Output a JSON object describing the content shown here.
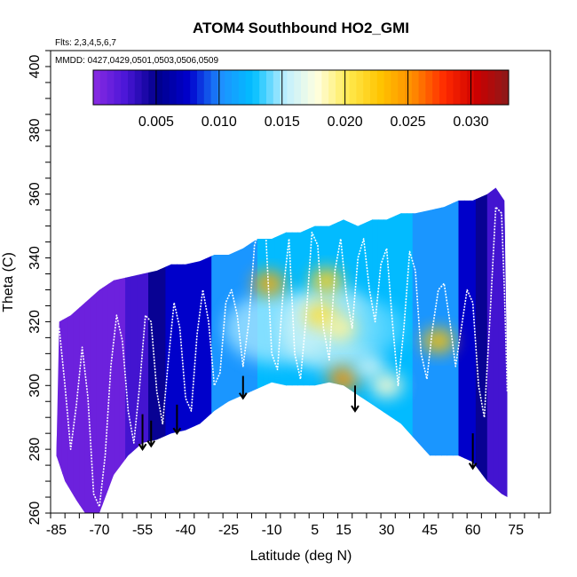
{
  "chart_data": {
    "type": "heatmap",
    "title": "ATOM4 Southbound HO2_GMI",
    "flights_note": "Flts: 2,3,4,5,6,7",
    "dates_note": "MMDD: 0427,0429,0501,0503,0506,0509",
    "xlabel": "Latitude (deg N)",
    "ylabel": "Theta (C)",
    "xlim": [
      -87,
      87
    ],
    "ylim": [
      260,
      405
    ],
    "x_ticks": [
      -85,
      -70,
      -55,
      -40,
      -25,
      -10,
      5,
      15,
      30,
      45,
      60,
      75
    ],
    "x_tick_labels": [
      "-85",
      "-70",
      "-55",
      "-40",
      "-25",
      "-10",
      "5",
      "15",
      "30",
      "45",
      "60",
      "75"
    ],
    "y_ticks": [
      260,
      280,
      300,
      320,
      340,
      360,
      380,
      400
    ],
    "y_tick_labels": [
      "260",
      "280",
      "300",
      "320",
      "340",
      "360",
      "380",
      "400"
    ],
    "colorbar": {
      "range": [
        0,
        0.033
      ],
      "ticks": [
        0.005,
        0.01,
        0.015,
        0.02,
        0.025,
        0.03
      ],
      "tick_labels": [
        "0.005",
        "0.010",
        "0.015",
        "0.020",
        "0.025",
        "0.030"
      ],
      "colors": [
        "#8a2be2",
        "#4b16d8",
        "#00008b",
        "#0000cd",
        "#1e90ff",
        "#00bfff",
        "#bfefff",
        "#ffffe0",
        "#ffe94d",
        "#ffc400",
        "#ff8c00",
        "#ff2a00",
        "#cc0000",
        "#8b1a1a"
      ]
    },
    "upper_boundary": [
      [
        -84,
        320
      ],
      [
        -80,
        322
      ],
      [
        -75,
        326
      ],
      [
        -70,
        330
      ],
      [
        -65,
        333
      ],
      [
        -60,
        334
      ],
      [
        -55,
        335
      ],
      [
        -50,
        336
      ],
      [
        -45,
        338
      ],
      [
        -40,
        338
      ],
      [
        -35,
        339
      ],
      [
        -30,
        341
      ],
      [
        -25,
        341
      ],
      [
        -20,
        343
      ],
      [
        -15,
        346
      ],
      [
        -10,
        346
      ],
      [
        -5,
        348
      ],
      [
        0,
        348
      ],
      [
        5,
        350
      ],
      [
        10,
        350
      ],
      [
        15,
        352
      ],
      [
        20,
        350
      ],
      [
        25,
        352
      ],
      [
        30,
        352
      ],
      [
        35,
        354
      ],
      [
        40,
        354
      ],
      [
        45,
        355
      ],
      [
        50,
        356
      ],
      [
        55,
        358
      ],
      [
        60,
        358
      ],
      [
        65,
        360
      ],
      [
        68,
        362
      ],
      [
        71,
        358
      ],
      [
        72,
        300
      ],
      [
        72,
        265
      ]
    ],
    "lower_boundary": [
      [
        -85,
        278
      ],
      [
        -82,
        270
      ],
      [
        -78,
        264
      ],
      [
        -75,
        260
      ],
      [
        -70,
        260
      ],
      [
        -65,
        272
      ],
      [
        -60,
        278
      ],
      [
        -55,
        282
      ],
      [
        -50,
        283
      ],
      [
        -45,
        285
      ],
      [
        -40,
        286
      ],
      [
        -35,
        288
      ],
      [
        -30,
        292
      ],
      [
        -25,
        295
      ],
      [
        -20,
        297
      ],
      [
        -15,
        299
      ],
      [
        -10,
        301
      ],
      [
        -5,
        300
      ],
      [
        0,
        300
      ],
      [
        5,
        300
      ],
      [
        10,
        301
      ],
      [
        15,
        300
      ],
      [
        20,
        297
      ],
      [
        25,
        294
      ],
      [
        30,
        291
      ],
      [
        35,
        288
      ],
      [
        40,
        283
      ],
      [
        45,
        278
      ],
      [
        50,
        278
      ],
      [
        55,
        278
      ],
      [
        60,
        276
      ],
      [
        65,
        270
      ],
      [
        70,
        266
      ],
      [
        72,
        265
      ]
    ],
    "highs": [
      {
        "lat": -11,
        "theta": 332,
        "value": 0.024
      },
      {
        "lat": 7,
        "theta": 322,
        "value": 0.021
      },
      {
        "lat": 9,
        "theta": 333,
        "value": 0.022
      },
      {
        "lat": 15,
        "theta": 302,
        "value": 0.025
      },
      {
        "lat": 14,
        "theta": 318,
        "value": 0.019
      },
      {
        "lat": 48,
        "theta": 314,
        "value": 0.023
      },
      {
        "lat": 24,
        "theta": 306,
        "value": 0.016
      },
      {
        "lat": 30,
        "theta": 300,
        "value": 0.018
      }
    ],
    "descent_arrows": [
      {
        "lat": -55,
        "theta_start": 291,
        "theta_end": 280
      },
      {
        "lat": -52,
        "theta_start": 289,
        "theta_end": 281
      },
      {
        "lat": -43,
        "theta_start": 294,
        "theta_end": 285
      },
      {
        "lat": -20,
        "theta_start": 303,
        "theta_end": 296
      },
      {
        "lat": 19,
        "theta_start": 300,
        "theta_end": 292
      },
      {
        "lat": 60,
        "theta_start": 285,
        "theta_end": 274
      }
    ],
    "flight_tracks": [
      [
        [
          -84,
          318
        ],
        [
          -82,
          300
        ],
        [
          -80,
          280
        ],
        [
          -78,
          294
        ],
        [
          -76,
          312
        ],
        [
          -74,
          296
        ],
        [
          -72,
          266
        ],
        [
          -70,
          262
        ],
        [
          -68,
          278
        ],
        [
          -66,
          306
        ],
        [
          -64,
          322
        ],
        [
          -62,
          314
        ],
        [
          -60,
          292
        ],
        [
          -58,
          282
        ],
        [
          -56,
          300
        ],
        [
          -54,
          322
        ],
        [
          -52,
          320
        ],
        [
          -50,
          298
        ],
        [
          -48,
          288
        ],
        [
          -46,
          308
        ],
        [
          -44,
          326
        ],
        [
          -42,
          318
        ],
        [
          -40,
          296
        ],
        [
          -38,
          292
        ],
        [
          -36,
          316
        ],
        [
          -34,
          330
        ],
        [
          -32,
          320
        ],
        [
          -30,
          300
        ],
        [
          -28,
          304
        ],
        [
          -26,
          326
        ],
        [
          -24,
          330
        ],
        [
          -22,
          322
        ],
        [
          -20,
          306
        ],
        [
          -18,
          320
        ],
        [
          -16,
          344
        ],
        [
          -14,
          350
        ],
        [
          -12,
          346
        ],
        [
          -10,
          310
        ],
        [
          -8,
          305
        ],
        [
          -6,
          330
        ],
        [
          -4,
          346
        ],
        [
          -2,
          310
        ],
        [
          0,
          302
        ],
        [
          2,
          322
        ],
        [
          4,
          348
        ],
        [
          6,
          344
        ],
        [
          8,
          318
        ],
        [
          10,
          308
        ],
        [
          12,
          336
        ],
        [
          14,
          346
        ],
        [
          16,
          328
        ],
        [
          18,
          318
        ],
        [
          20,
          340
        ],
        [
          22,
          346
        ],
        [
          24,
          330
        ],
        [
          26,
          320
        ],
        [
          28,
          338
        ],
        [
          30,
          343
        ],
        [
          32,
          320
        ],
        [
          34,
          300
        ],
        [
          36,
          318
        ],
        [
          38,
          342
        ],
        [
          40,
          336
        ],
        [
          42,
          310
        ],
        [
          44,
          302
        ],
        [
          46,
          318
        ],
        [
          48,
          330
        ],
        [
          50,
          332
        ],
        [
          52,
          320
        ],
        [
          54,
          306
        ],
        [
          56,
          318
        ],
        [
          58,
          330
        ],
        [
          60,
          326
        ],
        [
          62,
          300
        ],
        [
          64,
          290
        ],
        [
          66,
          322
        ],
        [
          68,
          356
        ],
        [
          70,
          354
        ],
        [
          71,
          330
        ],
        [
          72,
          298
        ]
      ]
    ]
  }
}
